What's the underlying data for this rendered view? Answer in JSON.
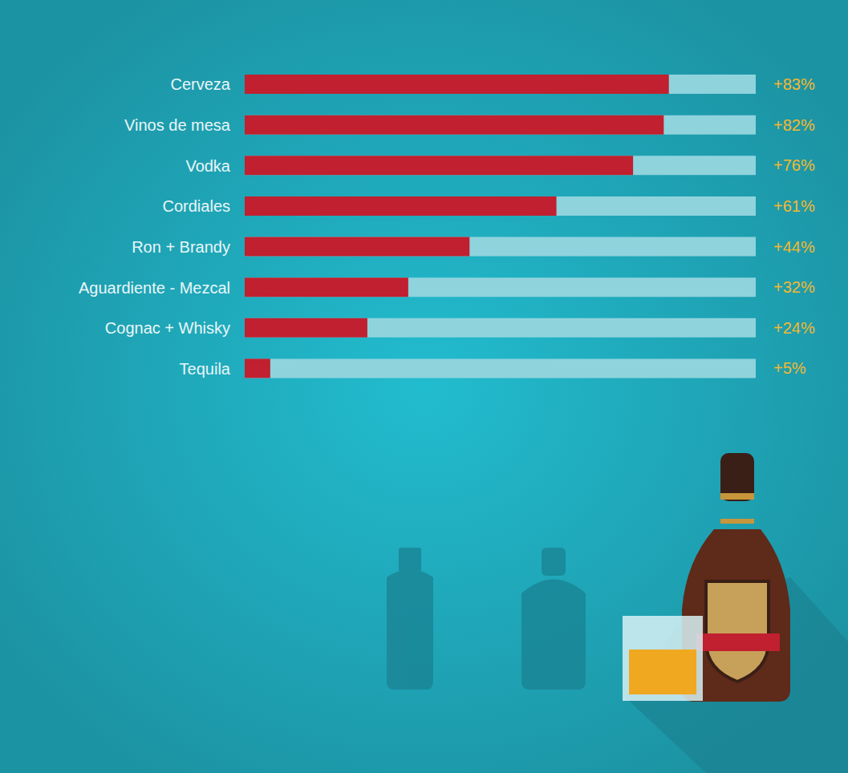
{
  "chart_data": {
    "type": "bar",
    "orientation": "horizontal",
    "categories": [
      "Cerveza",
      "Vinos de mesa",
      "Vodka",
      "Cordiales",
      "Ron + Brandy",
      "Aguardiente - Mezcal",
      "Cognac + Whisky",
      "Tequila"
    ],
    "values": [
      83,
      82,
      76,
      61,
      44,
      32,
      24,
      5
    ],
    "value_labels": [
      "+83%",
      "+82%",
      "+76%",
      "+61%",
      "+44%",
      "+32%",
      "+24%",
      "+5%"
    ],
    "color": "#c0202f",
    "xlim": [
      0,
      100
    ],
    "data_labels": true,
    "tick_labels": "y"
  }
}
